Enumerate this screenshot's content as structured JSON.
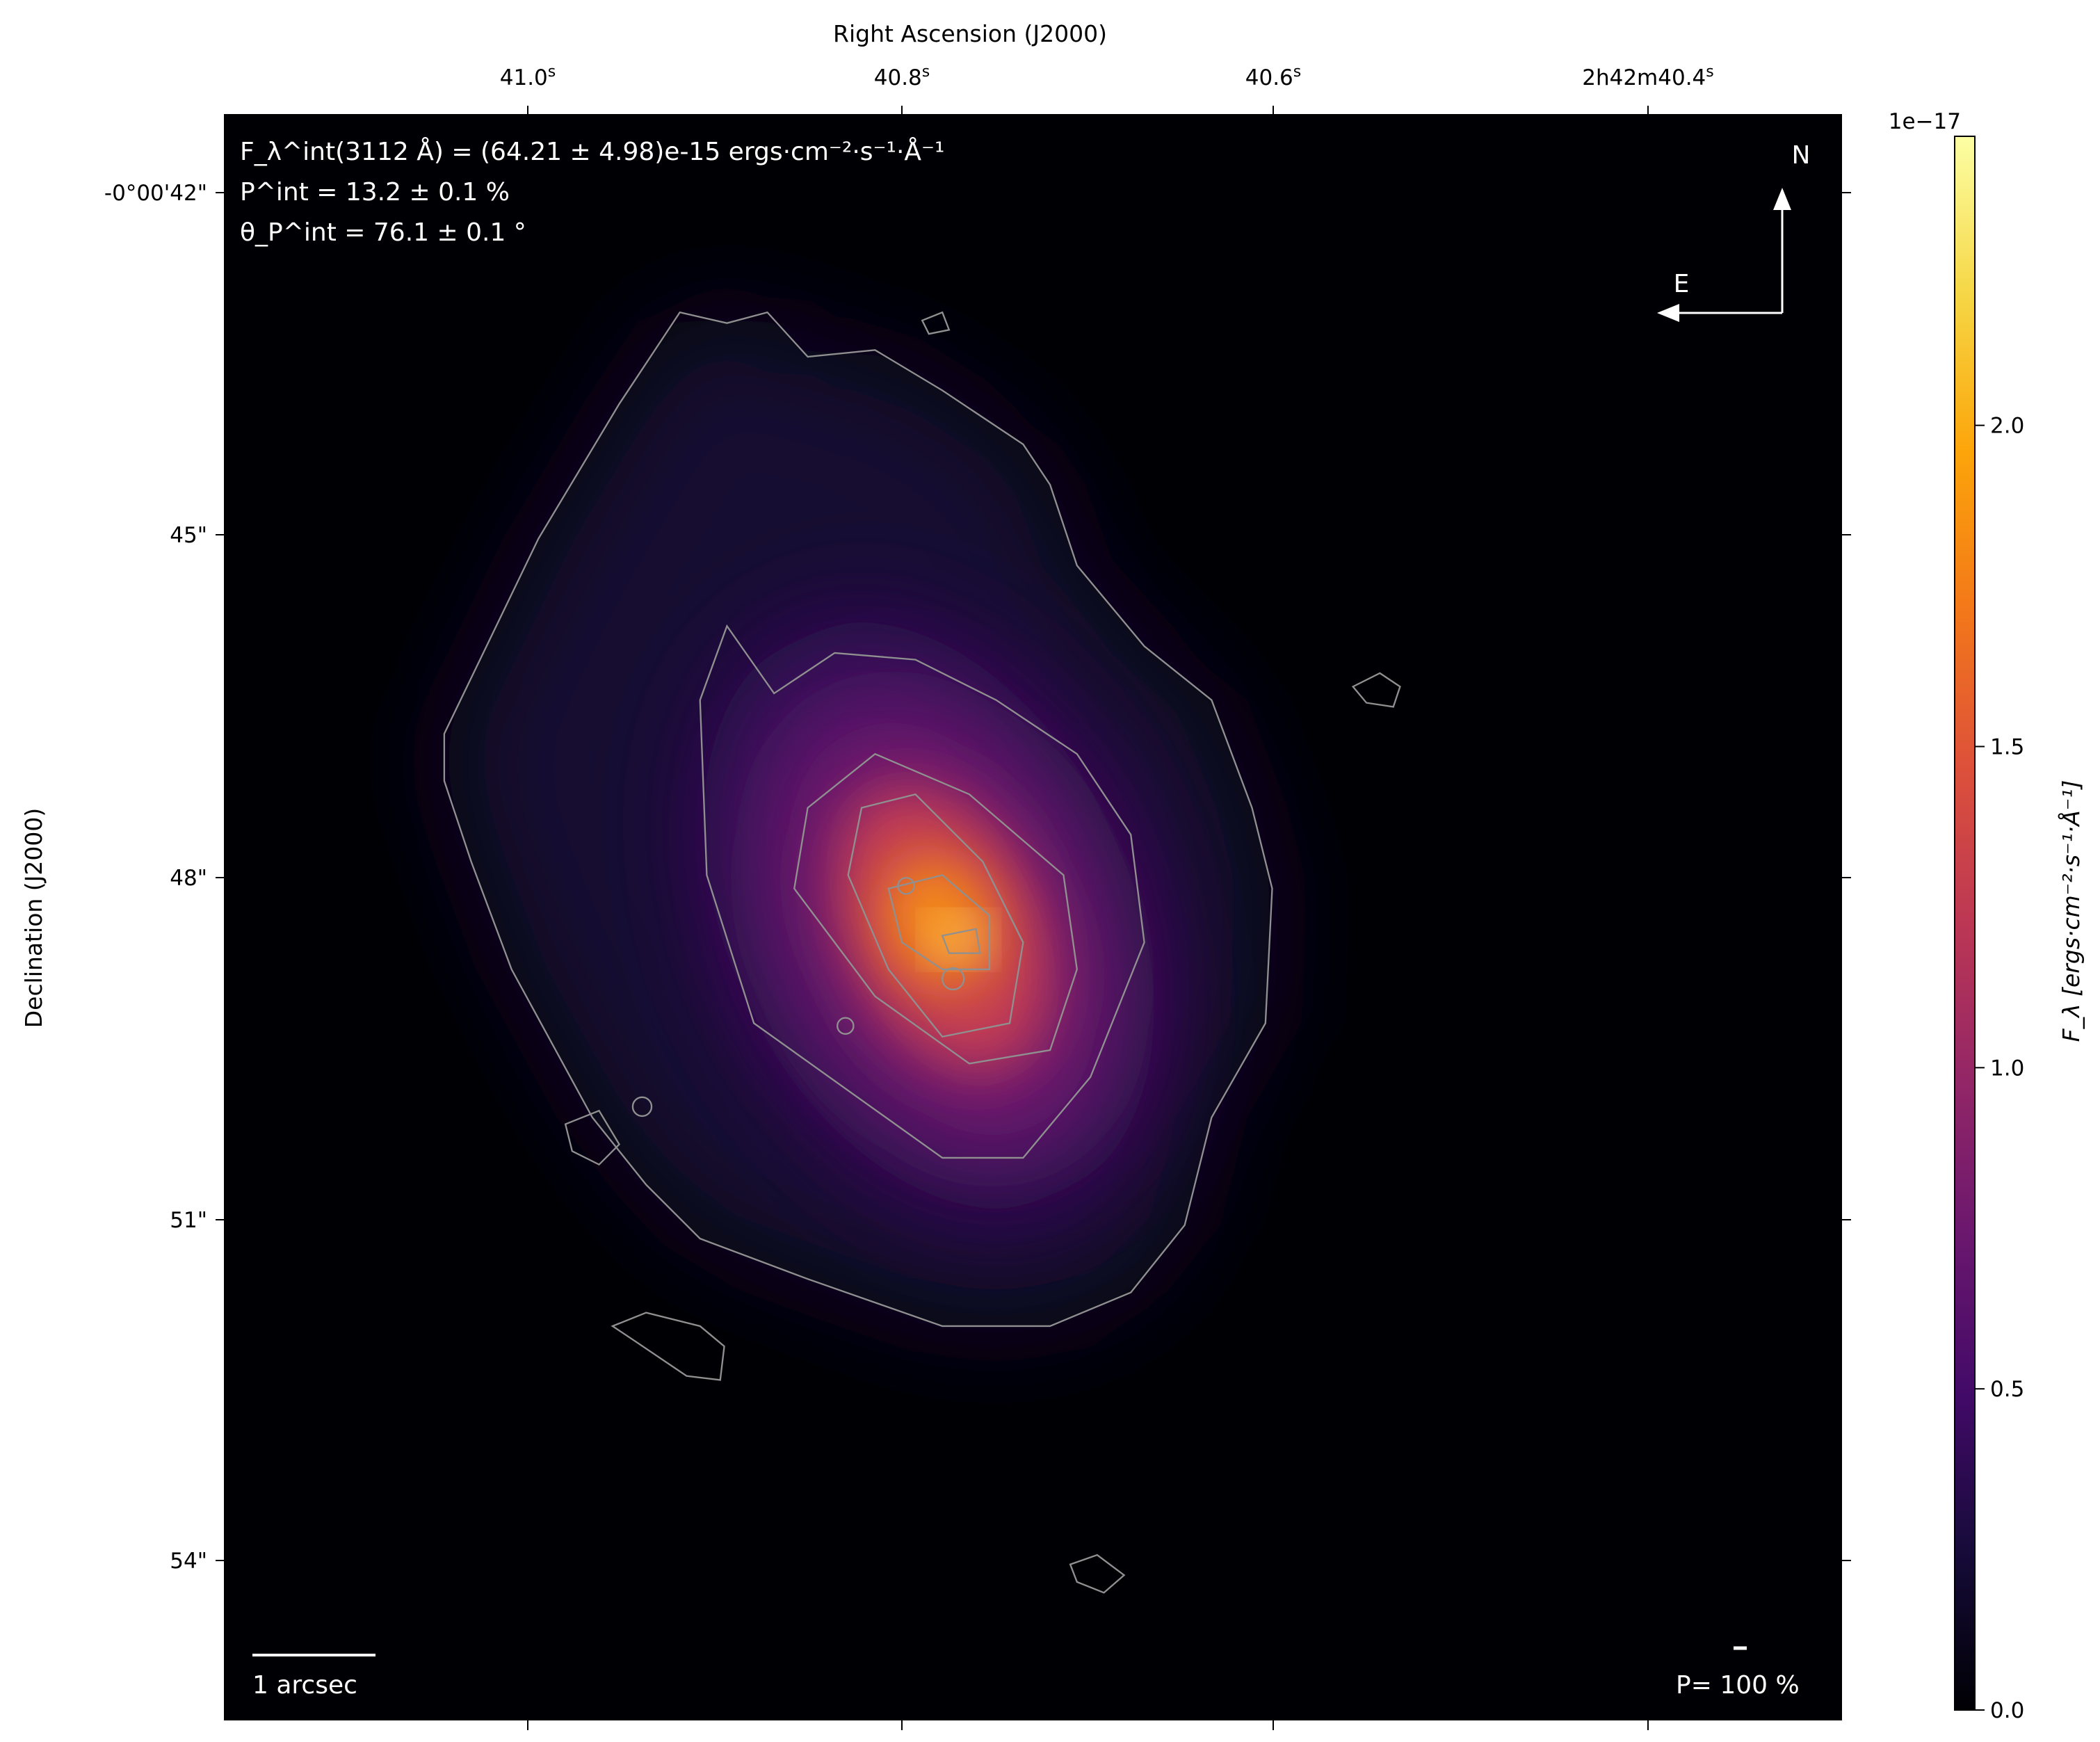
{
  "chart_data": {
    "type": "heatmap",
    "xlabel": "Right Ascension (J2000)",
    "ylabel": "Declination (J2000)",
    "x_ticks": [
      "41.0s",
      "40.8s",
      "40.6s",
      "2h42m40.4s"
    ],
    "x_tick_labels": [
      {
        "main": "41.0",
        "sup": "s"
      },
      {
        "main": "40.8",
        "sup": "s"
      },
      {
        "main": "40.6",
        "sup": "s"
      },
      {
        "main": "2h42m40.4",
        "sup": "s"
      }
    ],
    "y_tick_labels": [
      "-0°00'42\"",
      "45\"",
      "48\"",
      "51\"",
      "54\""
    ],
    "colormap": "inferno",
    "colorbar": {
      "label": "F_λ [ergs·cm⁻²·s⁻¹·Å⁻¹]",
      "offset_text": "1e−17",
      "ticks": [
        "0.0",
        "0.5",
        "1.0",
        "1.5",
        "2.0"
      ],
      "range": [
        0.0,
        2.45
      ]
    },
    "contours": true,
    "annotations": {
      "flux": "F_λ^int(3112 Å) = (64.21 ± 4.98)e-15 ergs·cm⁻²·s⁻¹·Å⁻¹",
      "polarization": "P^int = 13.2 ± 0.1 %",
      "angle": "θ_P^int = 76.1 ± 0.1 °"
    },
    "compass": {
      "north": "N",
      "east": "E"
    },
    "scalebar": "1 arcsec",
    "pol_scale": "P= 100 %"
  }
}
